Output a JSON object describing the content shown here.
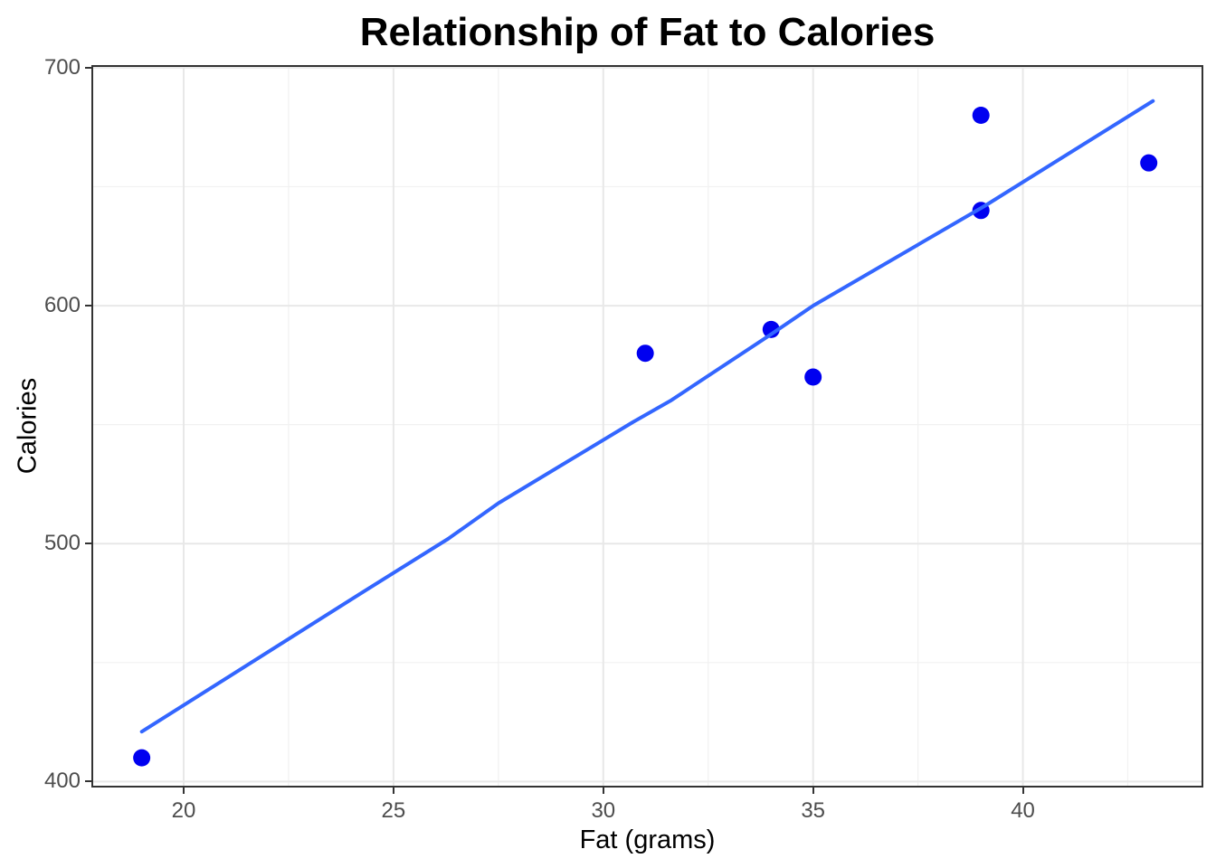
{
  "title": "Relationship of Fat to Calories",
  "x_axis_label": "Fat (grams)",
  "y_axis_label": "Calories",
  "chart_data": {
    "type": "scatter",
    "title": "Relationship of Fat to Calories",
    "xlabel": "Fat (grams)",
    "ylabel": "Calories",
    "legend_position": "none",
    "grid": true,
    "points": [
      {
        "fat": 19,
        "calories": 410
      },
      {
        "fat": 31,
        "calories": 580
      },
      {
        "fat": 34,
        "calories": 590
      },
      {
        "fat": 35,
        "calories": 570
      },
      {
        "fat": 39,
        "calories": 640
      },
      {
        "fat": 39,
        "calories": 680
      },
      {
        "fat": 43,
        "calories": 660
      }
    ],
    "trend_line": [
      [
        19.0,
        421
      ],
      [
        24.3,
        480
      ],
      [
        26.3,
        502
      ],
      [
        27.5,
        517
      ],
      [
        30.7,
        551
      ],
      [
        31.6,
        560
      ],
      [
        34.0,
        588
      ],
      [
        35.0,
        600
      ],
      [
        39.1,
        642
      ],
      [
        43.1,
        686
      ]
    ],
    "x_ticks": [
      20,
      25,
      30,
      35,
      40
    ],
    "x_minor_ticks": [
      22.5,
      27.5,
      32.5,
      37.5,
      42.5
    ],
    "y_ticks": [
      400,
      500,
      600,
      700
    ],
    "y_minor_ticks": [
      450,
      550,
      650
    ],
    "xlim": [
      17.8,
      44.3
    ],
    "ylim": [
      397.5,
      701.1
    ],
    "colors": {
      "point": "#0000F0",
      "trend": "#3366FF",
      "grid_major": "#E8E8E8",
      "grid_minor": "#F1F1F1",
      "panel_border": "#333333",
      "tick_mark": "#333333",
      "tick_label": "#4D4D4D",
      "title_text": "#000000"
    }
  }
}
